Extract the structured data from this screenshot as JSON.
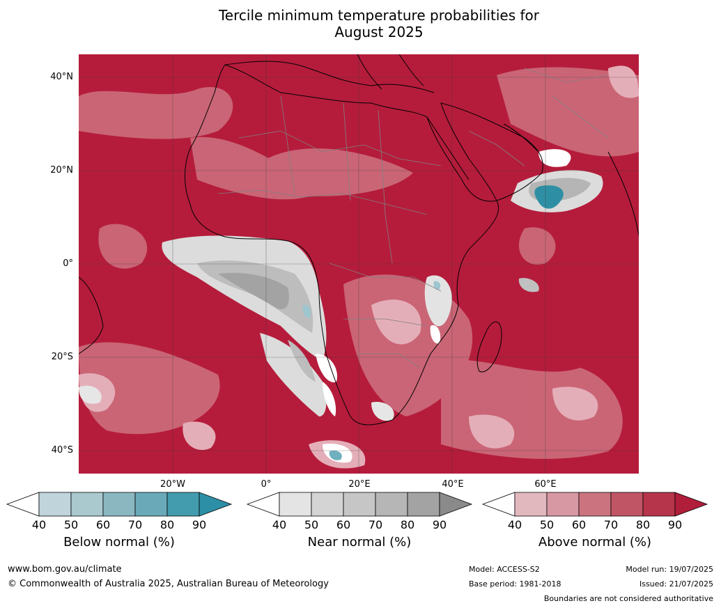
{
  "title_line1": "Tercile minimum temperature probabilities for",
  "title_line2": "August 2025",
  "map": {
    "lat_labels": [
      "40°N",
      "20°N",
      "0°",
      "20°S",
      "40°S"
    ],
    "lon_labels": [
      "20°W",
      "0°",
      "20°E",
      "40°E",
      "60°E"
    ],
    "dominant_category": "Above normal"
  },
  "colorbars": [
    {
      "name": "Below normal (%)",
      "ticks": [
        "40",
        "50",
        "60",
        "70",
        "80",
        "90"
      ],
      "colors": [
        "#ffffff",
        "#bfd5db",
        "#a9c9ce",
        "#8bb7c0",
        "#6aaab8",
        "#439cae",
        "#2d8fa6"
      ]
    },
    {
      "name": "Near normal (%)",
      "ticks": [
        "40",
        "50",
        "60",
        "70",
        "80",
        "90"
      ],
      "colors": [
        "#ffffff",
        "#e4e4e4",
        "#d4d4d4",
        "#c6c6c6",
        "#b6b6b6",
        "#a3a3a3",
        "#8a8a8a"
      ]
    },
    {
      "name": "Above normal (%)",
      "ticks": [
        "40",
        "50",
        "60",
        "70",
        "80",
        "90"
      ],
      "colors": [
        "#ffffff",
        "#e2b8bf",
        "#d898a3",
        "#cb7480",
        "#c05565",
        "#b6354b",
        "#b01e3a"
      ]
    }
  ],
  "footer": {
    "url": "www.bom.gov.au/climate",
    "copyright": "© Commonwealth of Australia 2025, Australian Bureau of Meteorology",
    "model": "Model: ACCESS-S2",
    "base_period": "Base period: 1981-2018",
    "model_run": "Model run: 19/07/2025",
    "issued": "Issued: 21/07/2025",
    "disclaimer": "Boundaries are not considered authoritative"
  },
  "colors": {
    "above_dominant": "#b51c3b",
    "above_light": "#d77a88",
    "above_pale": "#e8b4bd",
    "near_light": "#dcdcdc",
    "near_mid": "#b5b5b5",
    "near_dark": "#a3a3a3",
    "below_teal": "#2e8fa4",
    "below_light": "#9dc6cf"
  }
}
